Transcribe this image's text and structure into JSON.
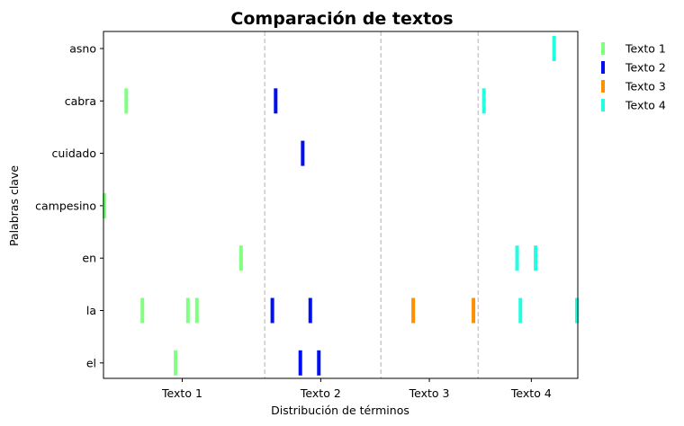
{
  "chart_data": {
    "type": "strip",
    "title": "Comparación de textos",
    "xlabel": "Distribución de términos",
    "ylabel": "Palabras clave",
    "xlim": [
      0,
      1000
    ],
    "keywords": [
      "asno",
      "cabra",
      "cuidado",
      "campesino",
      "en",
      "la",
      "el"
    ],
    "sections": [
      {
        "label": "Texto 1",
        "start": 0,
        "end": 340
      },
      {
        "label": "Texto 2",
        "start": 340,
        "end": 585
      },
      {
        "label": "Texto 3",
        "start": 585,
        "end": 790
      },
      {
        "label": "Texto 4",
        "start": 790,
        "end": 1000
      }
    ],
    "xtick_positions": [
      166,
      458,
      687,
      902
    ],
    "legend_position": "outside-right",
    "series": [
      {
        "name": "Texto 1",
        "color": "#80ff80",
        "points": [
          {
            "word": "cabra",
            "x": 48
          },
          {
            "word": "campesino",
            "x": 2
          },
          {
            "word": "en",
            "x": 290
          },
          {
            "word": "la",
            "x": 82
          },
          {
            "word": "la",
            "x": 178
          },
          {
            "word": "la",
            "x": 197
          },
          {
            "word": "el",
            "x": 152
          }
        ]
      },
      {
        "name": "Texto 2",
        "color": "#0010f0",
        "points": [
          {
            "word": "cabra",
            "x": 363
          },
          {
            "word": "cuidado",
            "x": 420
          },
          {
            "word": "la",
            "x": 356
          },
          {
            "word": "la",
            "x": 436
          },
          {
            "word": "el",
            "x": 415
          },
          {
            "word": "el",
            "x": 454
          }
        ]
      },
      {
        "name": "Texto 3",
        "color": "#ff9000",
        "points": [
          {
            "word": "la",
            "x": 653
          },
          {
            "word": "la",
            "x": 780
          }
        ]
      },
      {
        "name": "Texto 4",
        "color": "#20ffe0",
        "points": [
          {
            "word": "asno",
            "x": 950
          },
          {
            "word": "cabra",
            "x": 802
          },
          {
            "word": "en",
            "x": 872
          },
          {
            "word": "en",
            "x": 911
          },
          {
            "word": "la",
            "x": 879
          },
          {
            "word": "la",
            "x": 998
          }
        ]
      }
    ]
  }
}
